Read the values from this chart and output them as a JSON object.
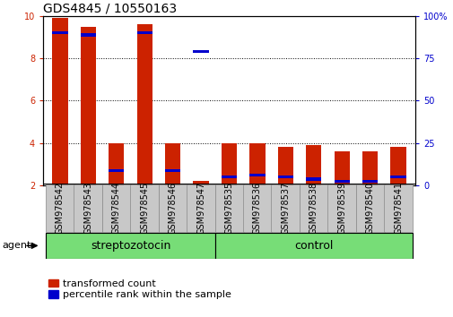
{
  "title": "GDS4845 / 10550163",
  "categories": [
    "GSM978542",
    "GSM978543",
    "GSM978544",
    "GSM978545",
    "GSM978546",
    "GSM978547",
    "GSM978535",
    "GSM978536",
    "GSM978537",
    "GSM978538",
    "GSM978539",
    "GSM978540",
    "GSM978541"
  ],
  "red_values": [
    9.9,
    9.5,
    4.0,
    9.6,
    4.0,
    2.2,
    4.0,
    4.0,
    3.8,
    3.9,
    3.6,
    3.6,
    3.8
  ],
  "blue_values": [
    9.2,
    9.1,
    2.7,
    9.2,
    2.7,
    8.3,
    2.4,
    2.5,
    2.4,
    2.3,
    2.2,
    2.2,
    2.4
  ],
  "baseline": 2.0,
  "ylim_left": [
    2,
    10
  ],
  "ylim_right": [
    0,
    100
  ],
  "yticks_left": [
    2,
    4,
    6,
    8,
    10
  ],
  "yticks_right": [
    0,
    25,
    50,
    75,
    100
  ],
  "ytick_labels_right": [
    "0",
    "25",
    "50",
    "75",
    "100%"
  ],
  "red_color": "#cc2200",
  "blue_color": "#0000cc",
  "bar_width": 0.55,
  "group1_label": "streptozotocin",
  "group2_label": "control",
  "group1_indices": [
    0,
    1,
    2,
    3,
    4,
    5
  ],
  "group2_indices": [
    6,
    7,
    8,
    9,
    10,
    11,
    12
  ],
  "agent_label": "agent",
  "legend1": "transformed count",
  "legend2": "percentile rank within the sample",
  "bg_plot": "#ffffff",
  "bg_xlabel": "#c8c8c8",
  "bg_group": "#77dd77",
  "title_fontsize": 10,
  "tick_fontsize": 7,
  "group_fontsize": 9,
  "legend_fontsize": 8
}
